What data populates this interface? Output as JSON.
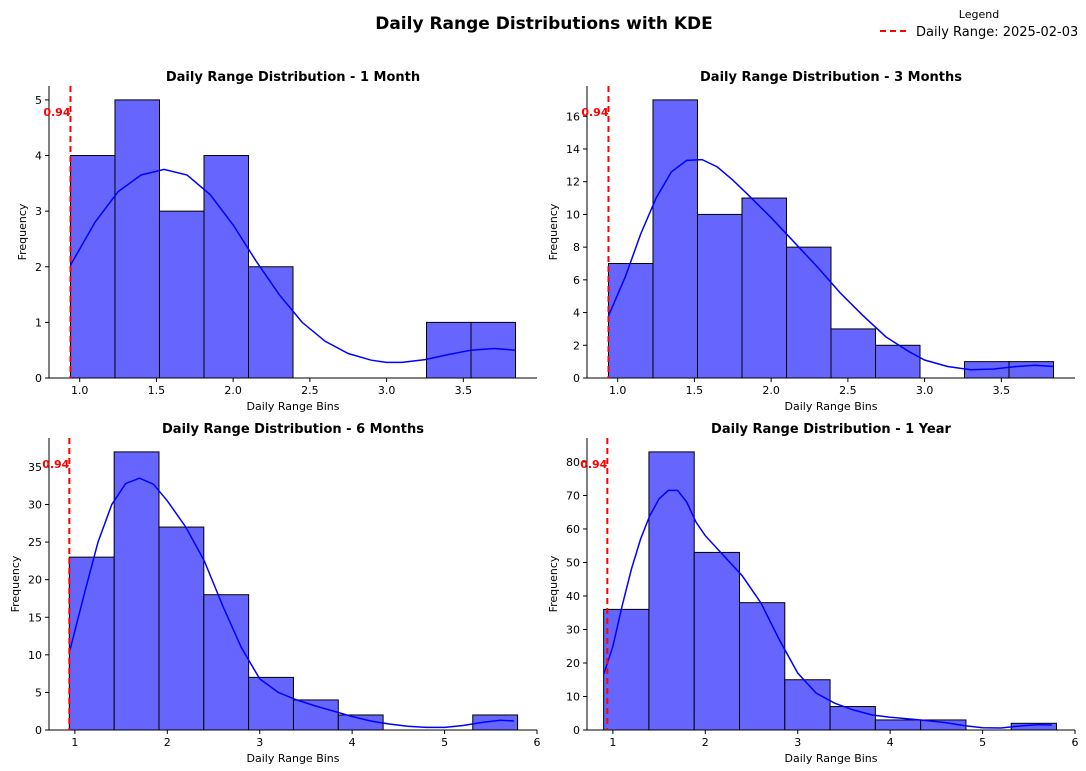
{
  "figure": {
    "title": "Daily Range Distributions with KDE",
    "legend": {
      "title": "Legend",
      "label": "Daily Range: 2025-02-03",
      "placement": "top-right"
    },
    "colors": {
      "bar_fill": "#6666ff",
      "bar_edge": "#000000",
      "kde": "#0000ff",
      "marker": "#ff0000"
    }
  },
  "chart_data": [
    {
      "type": "bar",
      "title": "Daily Range Distribution - 1 Month",
      "xlabel": "Daily Range Bins",
      "ylabel": "Frequency",
      "xlim": [
        0.8,
        3.98
      ],
      "ylim": [
        0,
        5.25
      ],
      "xticks": [
        1.0,
        1.5,
        2.0,
        2.5,
        3.0,
        3.5
      ],
      "xtick_labels": [
        "1.0",
        "1.5",
        "2.0",
        "2.5",
        "3.0",
        "3.5"
      ],
      "yticks": [
        0,
        1,
        2,
        3,
        4,
        5
      ],
      "ytick_labels": [
        "0",
        "1",
        "2",
        "3",
        "4",
        "5"
      ],
      "bin_edges": [
        0.94,
        1.23,
        1.52,
        1.81,
        2.1,
        2.39,
        2.68,
        2.97,
        3.26,
        3.55,
        3.84
      ],
      "values": [
        4,
        5,
        3,
        4,
        2,
        0,
        0,
        0,
        1,
        1
      ],
      "marker": {
        "x": 0.94,
        "label": "0.94"
      },
      "kde": [
        [
          0.94,
          2.03
        ],
        [
          1.1,
          2.8
        ],
        [
          1.25,
          3.35
        ],
        [
          1.4,
          3.65
        ],
        [
          1.55,
          3.75
        ],
        [
          1.7,
          3.65
        ],
        [
          1.85,
          3.3
        ],
        [
          2.0,
          2.75
        ],
        [
          2.15,
          2.1
        ],
        [
          2.3,
          1.5
        ],
        [
          2.45,
          1.0
        ],
        [
          2.6,
          0.66
        ],
        [
          2.75,
          0.44
        ],
        [
          2.9,
          0.32
        ],
        [
          3.0,
          0.28
        ],
        [
          3.1,
          0.28
        ],
        [
          3.25,
          0.33
        ],
        [
          3.4,
          0.42
        ],
        [
          3.55,
          0.5
        ],
        [
          3.7,
          0.53
        ],
        [
          3.84,
          0.5
        ]
      ]
    },
    {
      "type": "bar",
      "title": "Daily Range Distribution - 3 Months",
      "xlabel": "Daily Range Bins",
      "ylabel": "Frequency",
      "xlim": [
        0.8,
        3.98
      ],
      "ylim": [
        0,
        17.85
      ],
      "xticks": [
        1.0,
        1.5,
        2.0,
        2.5,
        3.0,
        3.5
      ],
      "xtick_labels": [
        "1.0",
        "1.5",
        "2.0",
        "2.5",
        "3.0",
        "3.5"
      ],
      "yticks": [
        0,
        2,
        4,
        6,
        8,
        10,
        12,
        14,
        16
      ],
      "ytick_labels": [
        "0",
        "2",
        "4",
        "6",
        "8",
        "10",
        "12",
        "14",
        "16"
      ],
      "bin_edges": [
        0.94,
        1.23,
        1.52,
        1.81,
        2.1,
        2.39,
        2.68,
        2.97,
        3.26,
        3.55,
        3.84
      ],
      "values": [
        7,
        17,
        10,
        11,
        8,
        3,
        2,
        0,
        1,
        1
      ],
      "marker": {
        "x": 0.94,
        "label": "0.94"
      },
      "kde": [
        [
          0.94,
          3.8
        ],
        [
          1.05,
          6.2
        ],
        [
          1.15,
          8.8
        ],
        [
          1.25,
          11.0
        ],
        [
          1.35,
          12.6
        ],
        [
          1.45,
          13.3
        ],
        [
          1.55,
          13.35
        ],
        [
          1.65,
          12.9
        ],
        [
          1.75,
          12.1
        ],
        [
          1.85,
          11.2
        ],
        [
          2.0,
          9.8
        ],
        [
          2.15,
          8.3
        ],
        [
          2.3,
          6.8
        ],
        [
          2.45,
          5.2
        ],
        [
          2.6,
          3.8
        ],
        [
          2.75,
          2.5
        ],
        [
          2.9,
          1.6
        ],
        [
          3.0,
          1.1
        ],
        [
          3.15,
          0.7
        ],
        [
          3.3,
          0.5
        ],
        [
          3.45,
          0.55
        ],
        [
          3.6,
          0.7
        ],
        [
          3.72,
          0.78
        ],
        [
          3.84,
          0.7
        ]
      ]
    },
    {
      "type": "bar",
      "title": "Daily Range Distribution - 6 Months",
      "xlabel": "Daily Range Bins",
      "ylabel": "Frequency",
      "xlim": [
        0.72,
        6.0
      ],
      "ylim": [
        0,
        38.85
      ],
      "xticks": [
        1,
        2,
        3,
        4,
        5,
        6
      ],
      "xtick_labels": [
        "1",
        "2",
        "3",
        "4",
        "5",
        "6"
      ],
      "yticks": [
        0,
        5,
        10,
        15,
        20,
        25,
        30,
        35
      ],
      "ytick_labels": [
        "0",
        "5",
        "10",
        "15",
        "20",
        "25",
        "30",
        "35"
      ],
      "bin_edges": [
        0.94,
        1.425,
        1.91,
        2.395,
        2.88,
        3.365,
        3.85,
        4.335,
        4.82,
        5.305,
        5.79
      ],
      "values": [
        23,
        37,
        27,
        18,
        7,
        4,
        2,
        0,
        0,
        2
      ],
      "marker": {
        "x": 0.94,
        "label": "0.94"
      },
      "kde": [
        [
          0.94,
          10.3
        ],
        [
          1.1,
          18.0
        ],
        [
          1.25,
          25.0
        ],
        [
          1.4,
          30.0
        ],
        [
          1.55,
          32.8
        ],
        [
          1.7,
          33.5
        ],
        [
          1.85,
          32.7
        ],
        [
          2.0,
          30.5
        ],
        [
          2.2,
          27.0
        ],
        [
          2.4,
          22.5
        ],
        [
          2.6,
          16.5
        ],
        [
          2.8,
          11.0
        ],
        [
          3.0,
          6.8
        ],
        [
          3.2,
          5.0
        ],
        [
          3.4,
          4.0
        ],
        [
          3.6,
          3.2
        ],
        [
          3.8,
          2.5
        ],
        [
          4.0,
          1.8
        ],
        [
          4.2,
          1.2
        ],
        [
          4.4,
          0.8
        ],
        [
          4.6,
          0.5
        ],
        [
          4.8,
          0.35
        ],
        [
          5.0,
          0.35
        ],
        [
          5.2,
          0.6
        ],
        [
          5.4,
          1.0
        ],
        [
          5.6,
          1.3
        ],
        [
          5.75,
          1.2
        ]
      ]
    },
    {
      "type": "bar",
      "title": "Daily Range Distribution - 1 Year",
      "xlabel": "Daily Range Bins",
      "ylabel": "Frequency",
      "xlim": [
        0.72,
        6.0
      ],
      "ylim": [
        0,
        87.15
      ],
      "xticks": [
        1,
        2,
        3,
        4,
        5,
        6
      ],
      "xtick_labels": [
        "1",
        "2",
        "3",
        "4",
        "5",
        "6"
      ],
      "yticks": [
        0,
        10,
        20,
        30,
        40,
        50,
        60,
        70,
        80
      ],
      "ytick_labels": [
        "0",
        "10",
        "20",
        "30",
        "40",
        "50",
        "60",
        "70",
        "80"
      ],
      "bin_edges": [
        0.9,
        1.39,
        1.88,
        2.37,
        2.86,
        3.35,
        3.84,
        4.33,
        4.82,
        5.31,
        5.8
      ],
      "values": [
        36,
        83,
        53,
        38,
        15,
        7,
        3,
        3,
        0,
        2
      ],
      "marker": {
        "x": 0.94,
        "label": "0.94"
      },
      "kde": [
        [
          0.9,
          16.5
        ],
        [
          1.0,
          25.0
        ],
        [
          1.1,
          37.0
        ],
        [
          1.2,
          48.0
        ],
        [
          1.3,
          57.0
        ],
        [
          1.4,
          64.0
        ],
        [
          1.5,
          69.0
        ],
        [
          1.6,
          71.5
        ],
        [
          1.7,
          71.5
        ],
        [
          1.8,
          68.0
        ],
        [
          1.9,
          62.0
        ],
        [
          2.0,
          58.0
        ],
        [
          2.2,
          52.0
        ],
        [
          2.4,
          46.0
        ],
        [
          2.6,
          38.0
        ],
        [
          2.8,
          27.0
        ],
        [
          3.0,
          17.0
        ],
        [
          3.2,
          11.0
        ],
        [
          3.4,
          8.0
        ],
        [
          3.6,
          6.0
        ],
        [
          3.8,
          4.5
        ],
        [
          4.0,
          3.8
        ],
        [
          4.2,
          3.3
        ],
        [
          4.4,
          2.8
        ],
        [
          4.6,
          2.2
        ],
        [
          4.8,
          1.3
        ],
        [
          5.0,
          0.7
        ],
        [
          5.2,
          0.6
        ],
        [
          5.4,
          1.2
        ],
        [
          5.6,
          1.6
        ],
        [
          5.75,
          1.5
        ]
      ]
    }
  ]
}
